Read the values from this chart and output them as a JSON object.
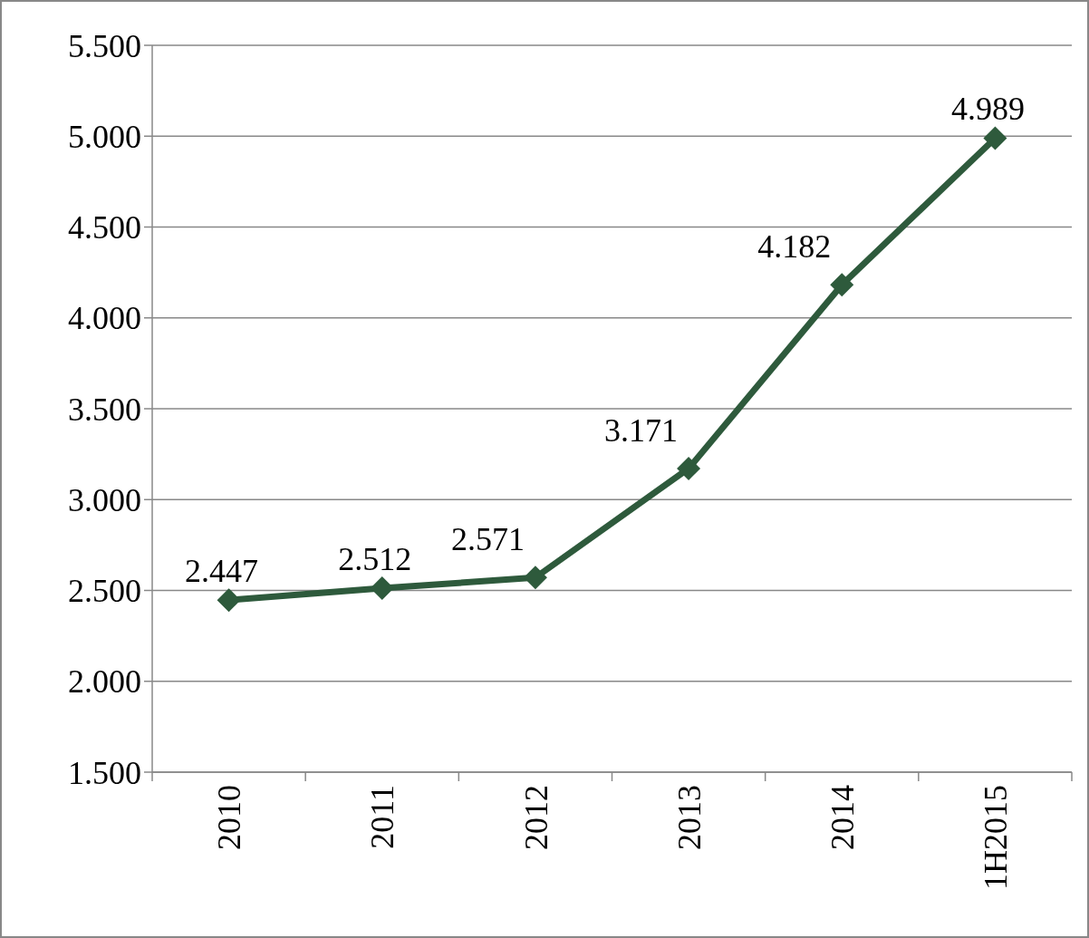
{
  "chart_data": {
    "type": "line",
    "categories": [
      "2010",
      "2011",
      "2012",
      "2013",
      "2014",
      "1H2015"
    ],
    "series": [
      {
        "color": "#2e5a3c",
        "values": [
          2447,
          2512,
          2571,
          3171,
          4182,
          4989
        ],
        "value_labels": [
          "2.447",
          "2.512",
          "2.571",
          "3.171",
          "4.182",
          "4.989"
        ]
      }
    ],
    "ylim": [
      1500,
      5500
    ],
    "yticks": [
      {
        "value": 1500,
        "label": "1.500"
      },
      {
        "value": 2000,
        "label": "2.000"
      },
      {
        "value": 2500,
        "label": "2.500"
      },
      {
        "value": 3000,
        "label": "3.000"
      },
      {
        "value": 3500,
        "label": "3.500"
      },
      {
        "value": 4000,
        "label": "4.000"
      },
      {
        "value": 4500,
        "label": "4.500"
      },
      {
        "value": 5000,
        "label": "5.000"
      },
      {
        "value": 5500,
        "label": "5.500"
      }
    ],
    "grid": "y",
    "marker": "diamond",
    "line_style": "solid"
  }
}
